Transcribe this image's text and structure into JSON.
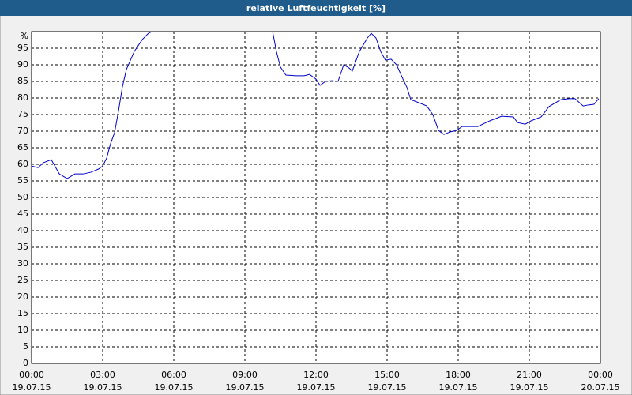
{
  "chart_data": {
    "type": "line",
    "title": "relative Luftfeuchtigkeit [%]",
    "xlim": [
      0,
      24
    ],
    "xticks": [
      {
        "value": 0,
        "label": "00:00",
        "date": "19.07.15"
      },
      {
        "value": 3,
        "label": "03:00",
        "date": "19.07.15"
      },
      {
        "value": 6,
        "label": "06:00",
        "date": "19.07.15"
      },
      {
        "value": 9,
        "label": "09:00",
        "date": "19.07.15"
      },
      {
        "value": 12,
        "label": "12:00",
        "date": "19.07.15"
      },
      {
        "value": 15,
        "label": "15:00",
        "date": "19.07.15"
      },
      {
        "value": 18,
        "label": "18:00",
        "date": "19.07.15"
      },
      {
        "value": 21,
        "label": "21:00",
        "date": "19.07.15"
      },
      {
        "value": 24,
        "label": "00:00",
        "date": "20.07.15"
      }
    ],
    "ylim": [
      0,
      100
    ],
    "yticks": [
      0,
      5,
      10,
      15,
      20,
      25,
      30,
      35,
      40,
      45,
      50,
      55,
      60,
      65,
      70,
      75,
      80,
      85,
      90,
      95,
      {
        "value": 100,
        "label": "%"
      }
    ],
    "grid": true,
    "series": [
      {
        "color": "#0000cc",
        "x": [
          0,
          0.27,
          0.5,
          0.83,
          1.17,
          1.5,
          1.83,
          2.17,
          2.5,
          2.83,
          3,
          3.17,
          3.33,
          3.5,
          3.67,
          3.83,
          4,
          4.33,
          4.67,
          4.93,
          5.07,
          7.5,
          10.17,
          10.33,
          10.5,
          10.73,
          11.17,
          11.5,
          11.73,
          12,
          12.17,
          12.4,
          12.67,
          12.93,
          13.17,
          13.4,
          13.53,
          13.83,
          14.17,
          14.33,
          14.53,
          14.73,
          14.93,
          15.17,
          15.4,
          15.67,
          15.83,
          16,
          16.33,
          16.67,
          16.93,
          17.17,
          17.4,
          17.67,
          17.93,
          18.17,
          18.5,
          18.83,
          19.33,
          19.83,
          20.33,
          20.5,
          20.83,
          21.07,
          21.5,
          21.83,
          22.33,
          22.67,
          22.93,
          23.27,
          23.5,
          23.73,
          23.93
        ],
        "values": [
          59.5,
          59,
          60.5,
          61.4,
          57.1,
          55.7,
          57.1,
          57.1,
          57.6,
          58.6,
          59.5,
          61.9,
          66.2,
          69.5,
          76.2,
          83.3,
          88.6,
          94,
          97.6,
          99.5,
          100,
          null,
          100,
          94,
          89.3,
          86.9,
          86.7,
          86.7,
          87.1,
          85.7,
          83.8,
          85,
          85.2,
          85,
          90,
          89,
          88.1,
          94,
          98.1,
          99.5,
          98.1,
          94,
          91.4,
          91.7,
          90,
          85.7,
          83.3,
          79.5,
          78.6,
          77.6,
          75,
          70.2,
          69,
          69.8,
          70.2,
          71.4,
          71.4,
          71.4,
          73.1,
          74.5,
          74.3,
          72.6,
          72.1,
          73.1,
          74.3,
          77.4,
          79.5,
          79.8,
          79.8,
          77.6,
          77.9,
          78.1,
          79.8
        ]
      }
    ]
  }
}
